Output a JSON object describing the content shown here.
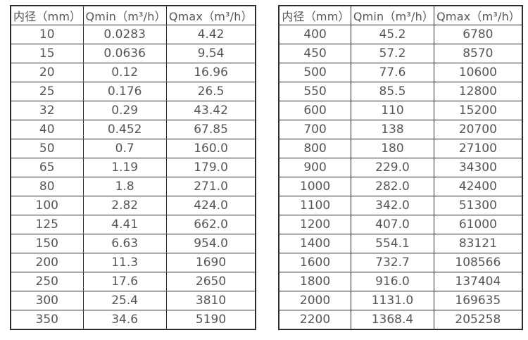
{
  "page": {
    "background_color": "#ffffff",
    "text_color": "#565656",
    "border_color": "#2b2b2b"
  },
  "tables": [
    {
      "name": "diameter-flow-table-small",
      "headers": [
        "内径（mm）",
        "Qmin（m³/h）",
        "Qmax（m³/h）"
      ],
      "rows": [
        [
          "10",
          "0.0283",
          "4.42"
        ],
        [
          "15",
          "0.0636",
          "9.54"
        ],
        [
          "20",
          "0.12",
          "16.96"
        ],
        [
          "25",
          "0.176",
          "26.5"
        ],
        [
          "32",
          "0.29",
          "43.42"
        ],
        [
          "40",
          "0.452",
          "67.85"
        ],
        [
          "50",
          "0.7",
          "160.0"
        ],
        [
          "65",
          "1.19",
          "179.0"
        ],
        [
          "80",
          "1.8",
          "271.0"
        ],
        [
          "100",
          "2.82",
          "424.0"
        ],
        [
          "125",
          "4.41",
          "662.0"
        ],
        [
          "150",
          "6.63",
          "954.0"
        ],
        [
          "200",
          "11.3",
          "1690"
        ],
        [
          "250",
          "17.6",
          "2650"
        ],
        [
          "300",
          "25.4",
          "3810"
        ],
        [
          "350",
          "34.6",
          "5190"
        ]
      ]
    },
    {
      "name": "diameter-flow-table-large",
      "headers": [
        "内径（mm）",
        "Qmin（m³/h）",
        "Qmax（m³/h）"
      ],
      "rows": [
        [
          "400",
          "45.2",
          "6780"
        ],
        [
          "450",
          "57.2",
          "8570"
        ],
        [
          "500",
          "77.6",
          "10600"
        ],
        [
          "550",
          "85.5",
          "12800"
        ],
        [
          "600",
          "110",
          "15200"
        ],
        [
          "700",
          "138",
          "20700"
        ],
        [
          "800",
          "180",
          "27100"
        ],
        [
          "900",
          "229.0",
          "34300"
        ],
        [
          "1000",
          "282.0",
          "42400"
        ],
        [
          "1100",
          "342.0",
          "51300"
        ],
        [
          "1200",
          "407.0",
          "61000"
        ],
        [
          "1400",
          "554.1",
          "83121"
        ],
        [
          "1600",
          "732.7",
          "108566"
        ],
        [
          "1800",
          "916.0",
          "137404"
        ],
        [
          "2000",
          "1131.0",
          "169635"
        ],
        [
          "2200",
          "1368.4",
          "205258"
        ]
      ]
    }
  ]
}
